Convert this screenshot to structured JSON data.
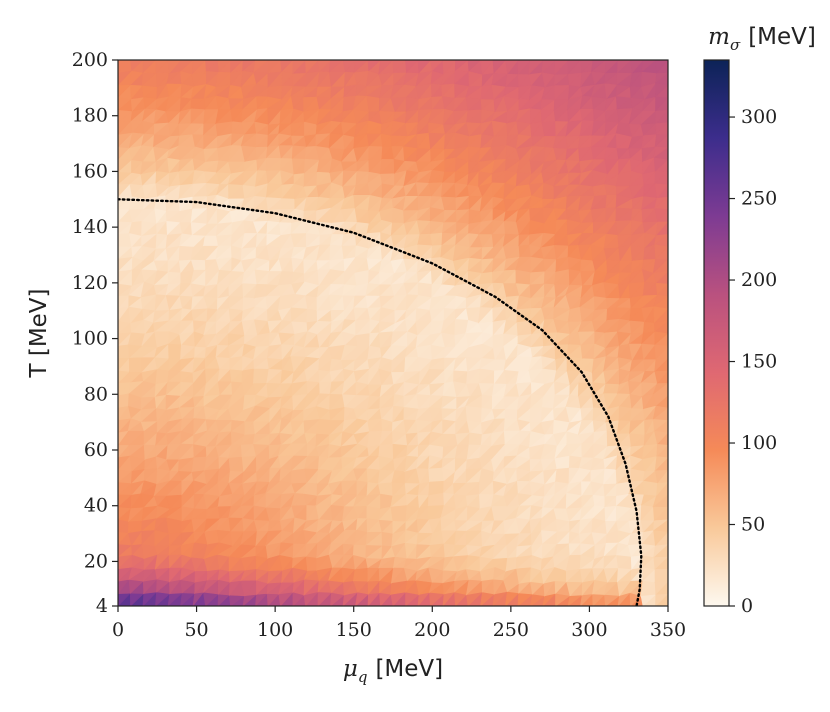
{
  "chart_data": {
    "type": "heatmap",
    "xlabel": {
      "symbol": "μ",
      "subscript": "q",
      "unit": "[MeV]"
    },
    "ylabel": "T [MeV]",
    "colorbar_label": {
      "symbol": "m",
      "subscript": "σ",
      "unit": "[MeV]"
    },
    "xlim": [
      0,
      350
    ],
    "ylim": [
      4,
      200
    ],
    "clim": [
      0,
      335
    ],
    "x_ticks": [
      {
        "value": 0,
        "label": "0"
      },
      {
        "value": 50,
        "label": "50"
      },
      {
        "value": 100,
        "label": "100"
      },
      {
        "value": 150,
        "label": "150"
      },
      {
        "value": 200,
        "label": "200"
      },
      {
        "value": 250,
        "label": "250"
      },
      {
        "value": 300,
        "label": "300"
      },
      {
        "value": 350,
        "label": "350"
      }
    ],
    "y_ticks": [
      {
        "value": 4,
        "label": "4"
      },
      {
        "value": 20,
        "label": "20"
      },
      {
        "value": 40,
        "label": "40"
      },
      {
        "value": 60,
        "label": "60"
      },
      {
        "value": 80,
        "label": "80"
      },
      {
        "value": 100,
        "label": "100"
      },
      {
        "value": 120,
        "label": "120"
      },
      {
        "value": 140,
        "label": "140"
      },
      {
        "value": 160,
        "label": "160"
      },
      {
        "value": 180,
        "label": "180"
      },
      {
        "value": 200,
        "label": "200"
      }
    ],
    "colorbar_ticks": [
      {
        "value": 0,
        "label": "0"
      },
      {
        "value": 50,
        "label": "50"
      },
      {
        "value": 100,
        "label": "100"
      },
      {
        "value": 150,
        "label": "150"
      },
      {
        "value": 200,
        "label": "200"
      },
      {
        "value": 250,
        "label": "250"
      },
      {
        "value": 300,
        "label": "300"
      }
    ],
    "colormap": "magma_r",
    "colormap_stops": [
      "#fcfdbf",
      "#fdc68b",
      "#fc8961",
      "#e65a58",
      "#b73779",
      "#721f81",
      "#2c115f",
      "#000004"
    ],
    "colorbar_stops": [
      "#fdf8ef",
      "#f9c99a",
      "#f58a58",
      "#df6872",
      "#b9517f",
      "#7d3b93",
      "#3c2d8c",
      "#0c2357"
    ],
    "transition_line": {
      "style": "dotted",
      "color": "#000000",
      "points": [
        [
          0,
          150
        ],
        [
          50,
          149
        ],
        [
          100,
          145
        ],
        [
          150,
          138
        ],
        [
          200,
          127
        ],
        [
          240,
          115
        ],
        [
          270,
          103
        ],
        [
          295,
          88
        ],
        [
          312,
          72
        ],
        [
          323,
          55
        ],
        [
          330,
          38
        ],
        [
          333,
          22
        ],
        [
          332,
          10
        ],
        [
          330,
          4
        ]
      ]
    },
    "grid": false
  }
}
